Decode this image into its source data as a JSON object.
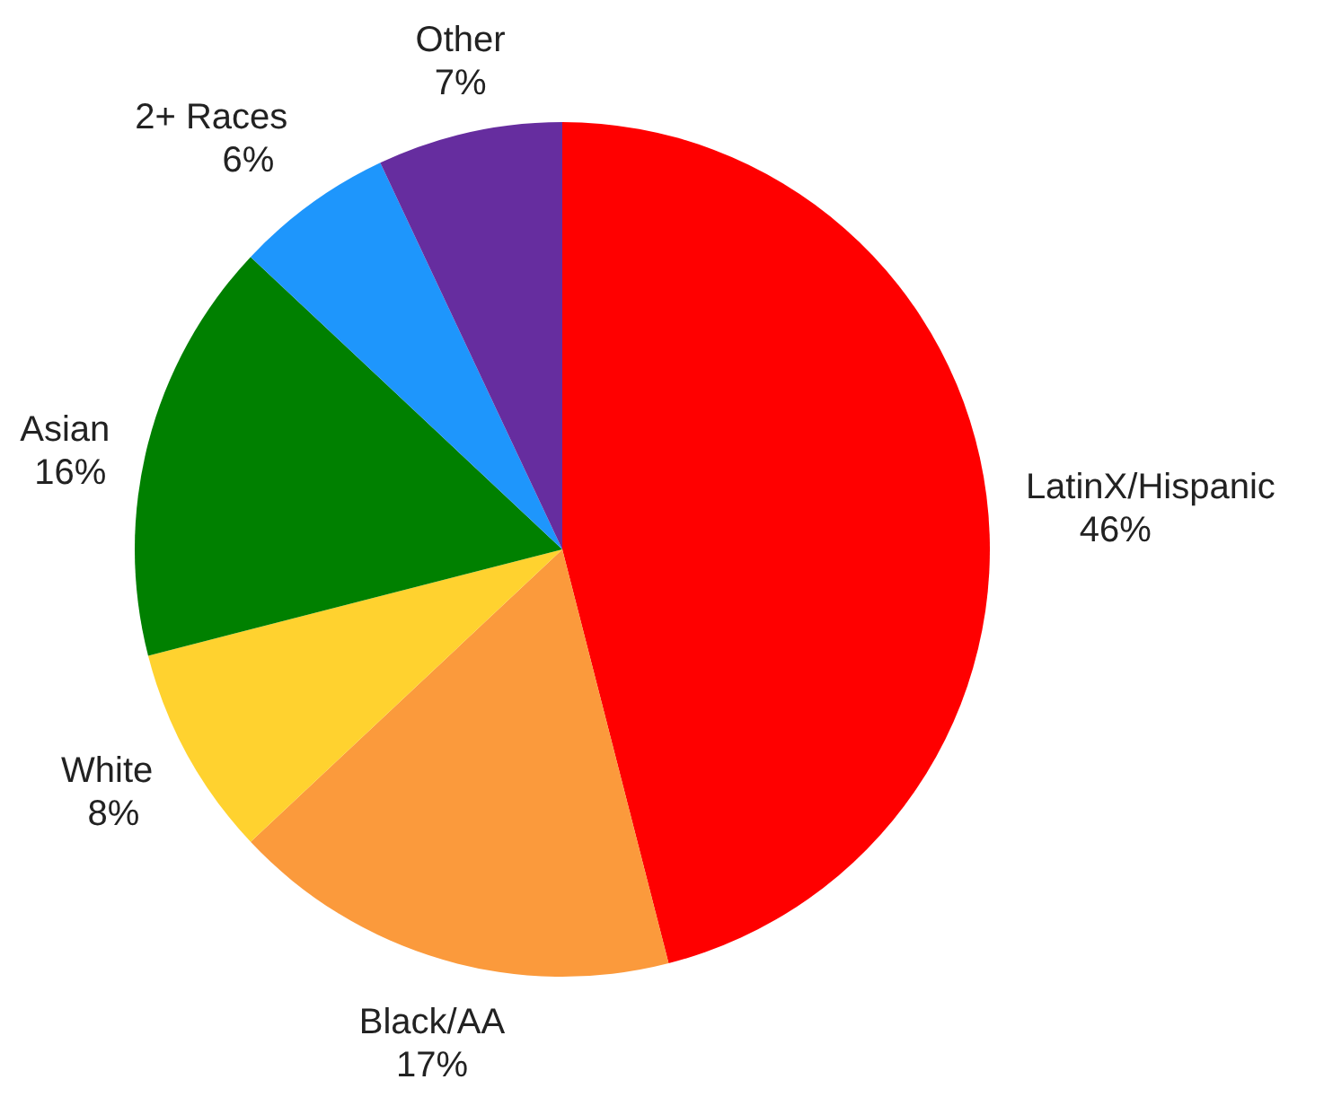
{
  "chart_data": {
    "type": "pie",
    "categories": [
      "LatinX/Hispanic",
      "Black/AA",
      "White",
      "Asian",
      "2+ Races",
      "Other"
    ],
    "values": [
      46,
      17,
      8,
      16,
      6,
      7
    ],
    "value_labels": [
      "46%",
      "17%",
      "8%",
      "16%",
      "6%",
      "7%"
    ],
    "colors": [
      "#ff0000",
      "#fb9a3c",
      "#ffd22f",
      "#008000",
      "#1e96fc",
      "#662d9f"
    ]
  }
}
